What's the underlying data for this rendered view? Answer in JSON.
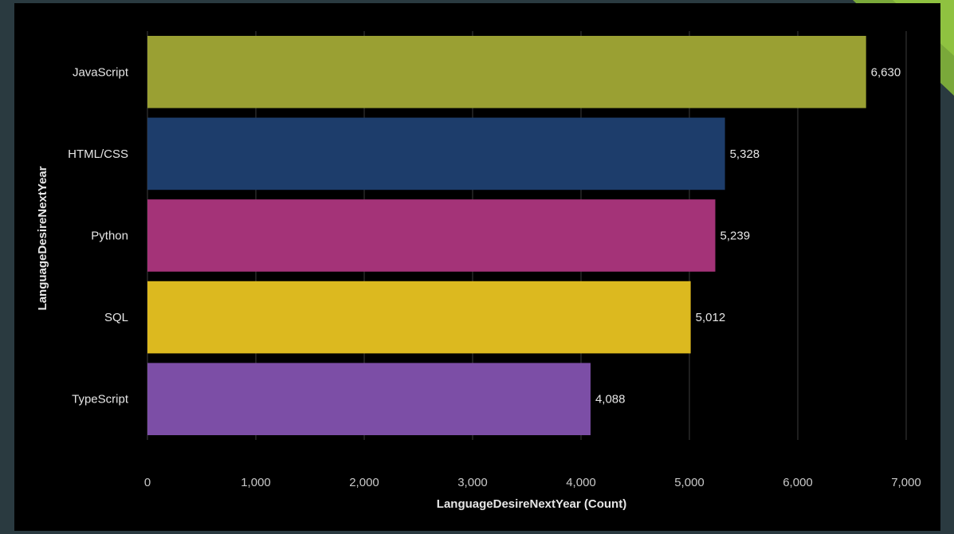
{
  "chart_data": {
    "type": "bar",
    "orientation": "horizontal",
    "categories": [
      "JavaScript",
      "HTML/CSS",
      "Python",
      "SQL",
      "TypeScript"
    ],
    "values": [
      6630,
      5328,
      5239,
      5012,
      4088
    ],
    "value_labels": [
      "6,630",
      "5,328",
      "5,239",
      "5,012",
      "4,088"
    ],
    "colors": [
      "#9aa033",
      "#1d3d6b",
      "#a43378",
      "#dcb91f",
      "#7c4ea6"
    ],
    "xlabel": "LanguageDesireNextYear (Count)",
    "ylabel": "LanguageDesireNextYear",
    "xlim": [
      0,
      7000
    ],
    "xticks": [
      0,
      1000,
      2000,
      3000,
      4000,
      5000,
      6000,
      7000
    ],
    "xtick_labels": [
      "0",
      "1,000",
      "2,000",
      "3,000",
      "4,000",
      "5,000",
      "6,000",
      "7,000"
    ],
    "grid": true,
    "background": "#000000"
  }
}
